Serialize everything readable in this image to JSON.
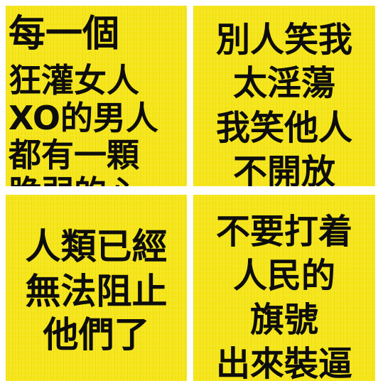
{
  "tiles": [
    {
      "lines": [
        "每一個",
        "狂灌女人",
        "XO的男人",
        "都有一顆",
        "脆弱的心"
      ]
    },
    {
      "lines": [
        "別人笑我",
        "太淫蕩",
        "我笑他人",
        "不開放"
      ]
    },
    {
      "lines": [
        "人類已經",
        "無法阻止",
        "他們了"
      ]
    },
    {
      "lines": [
        "不要打着",
        "人民的",
        "旗號",
        "出來裝逼"
      ]
    }
  ],
  "colors": {
    "tile_background": "#f6e61a",
    "text": "#0d0d0d",
    "page_background": "#ffffff"
  }
}
